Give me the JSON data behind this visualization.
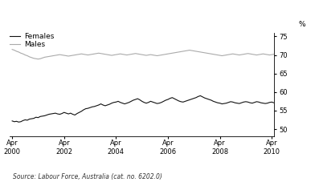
{
  "ylabel_right": "%",
  "ylim": [
    48,
    76
  ],
  "yticks": [
    50,
    55,
    60,
    65,
    70,
    75
  ],
  "xtick_years": [
    2000,
    2002,
    2004,
    2006,
    2008,
    2010
  ],
  "females_color": "#111111",
  "males_color": "#aaaaaa",
  "line_width": 0.8,
  "legend_females": "Females",
  "legend_males": "Males",
  "source_text": "Source: Labour Force, Australia (cat. no. 6202.0)",
  "females_data": [
    52.2,
    52.0,
    52.1,
    51.9,
    52.0,
    52.3,
    52.5,
    52.4,
    52.7,
    52.8,
    52.9,
    53.2,
    53.1,
    53.4,
    53.5,
    53.6,
    53.8,
    54.0,
    54.1,
    54.2,
    54.3,
    54.1,
    54.0,
    54.2,
    54.5,
    54.3,
    54.1,
    54.3,
    54.0,
    53.8,
    54.2,
    54.5,
    54.8,
    55.2,
    55.5,
    55.6,
    55.8,
    56.0,
    56.1,
    56.3,
    56.5,
    56.8,
    56.5,
    56.3,
    56.5,
    56.7,
    57.0,
    57.2,
    57.3,
    57.5,
    57.2,
    57.0,
    56.8,
    57.0,
    57.2,
    57.5,
    57.8,
    58.0,
    58.2,
    57.9,
    57.5,
    57.2,
    57.0,
    57.2,
    57.5,
    57.3,
    57.1,
    56.9,
    57.0,
    57.2,
    57.5,
    57.8,
    58.0,
    58.3,
    58.5,
    58.2,
    57.9,
    57.6,
    57.4,
    57.3,
    57.5,
    57.7,
    57.9,
    58.1,
    58.3,
    58.5,
    58.8,
    59.0,
    58.7,
    58.4,
    58.2,
    58.0,
    57.8,
    57.5,
    57.3,
    57.1,
    57.0,
    56.8,
    56.9,
    57.0,
    57.2,
    57.4,
    57.3,
    57.1,
    57.0,
    56.9,
    57.1,
    57.3,
    57.4,
    57.3,
    57.1,
    57.0,
    57.2,
    57.4,
    57.3,
    57.1,
    57.0,
    56.9,
    57.0,
    57.2,
    57.3,
    57.1
  ],
  "males_data": [
    71.5,
    71.3,
    71.0,
    70.8,
    70.5,
    70.3,
    70.0,
    69.8,
    69.5,
    69.3,
    69.1,
    69.0,
    68.9,
    69.0,
    69.2,
    69.4,
    69.5,
    69.6,
    69.7,
    69.8,
    69.9,
    70.0,
    70.1,
    70.0,
    69.9,
    69.8,
    69.7,
    69.8,
    69.9,
    70.0,
    70.1,
    70.2,
    70.3,
    70.2,
    70.1,
    70.0,
    70.1,
    70.2,
    70.3,
    70.4,
    70.5,
    70.4,
    70.3,
    70.2,
    70.1,
    70.0,
    69.9,
    70.0,
    70.1,
    70.2,
    70.3,
    70.2,
    70.1,
    70.0,
    70.1,
    70.2,
    70.3,
    70.4,
    70.3,
    70.2,
    70.1,
    70.0,
    69.9,
    70.0,
    70.1,
    70.0,
    69.9,
    69.8,
    69.9,
    70.0,
    70.1,
    70.2,
    70.3,
    70.4,
    70.5,
    70.6,
    70.7,
    70.8,
    70.9,
    71.0,
    71.1,
    71.2,
    71.3,
    71.2,
    71.1,
    71.0,
    70.9,
    70.8,
    70.7,
    70.6,
    70.5,
    70.4,
    70.3,
    70.2,
    70.1,
    70.0,
    69.9,
    69.8,
    69.9,
    70.0,
    70.1,
    70.2,
    70.3,
    70.2,
    70.1,
    70.0,
    70.1,
    70.2,
    70.3,
    70.4,
    70.3,
    70.2,
    70.1,
    70.0,
    70.1,
    70.2,
    70.3,
    70.2,
    70.1,
    70.0,
    70.1,
    70.2
  ]
}
